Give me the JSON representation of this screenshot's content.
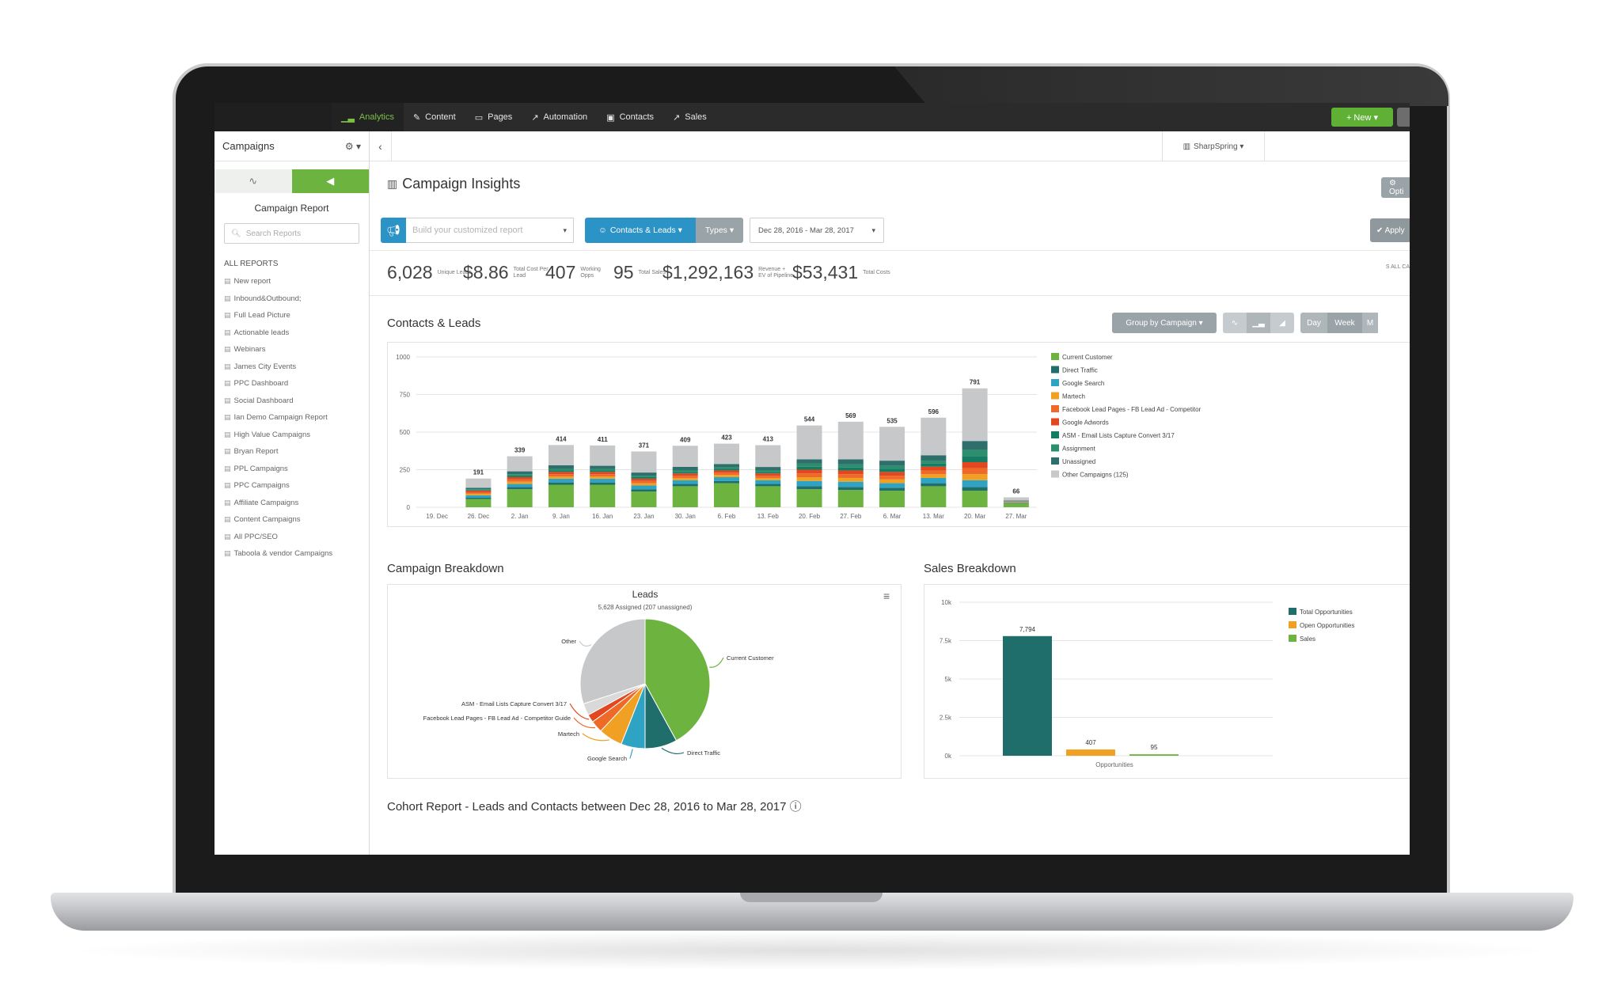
{
  "nav": {
    "items": [
      {
        "label": "Analytics",
        "icon": "analytics-icon",
        "glyph": "▁▃",
        "active": true
      },
      {
        "label": "Content",
        "icon": "pencil-icon",
        "glyph": "✎",
        "active": false
      },
      {
        "label": "Pages",
        "icon": "page-icon",
        "glyph": "▭",
        "active": false
      },
      {
        "label": "Automation",
        "icon": "automation-icon",
        "glyph": "↗",
        "active": false
      },
      {
        "label": "Contacts",
        "icon": "contacts-icon",
        "glyph": "▣",
        "active": false
      },
      {
        "label": "Sales",
        "icon": "sales-icon",
        "glyph": "↗",
        "active": false
      }
    ],
    "new_label": "+ New ▾"
  },
  "sidebar": {
    "title": "Campaigns",
    "gear": "⚙ ▾",
    "tab_left_glyph": "∿",
    "tab_right_glyph": "◀",
    "report_title": "Campaign Report",
    "search_placeholder": "Search Reports",
    "section_label": "ALL REPORTS",
    "reports": [
      "New report",
      "Inbound&Outbound;",
      "Full Lead Picture",
      "Actionable leads",
      "Webinars",
      "James City Events",
      "PPC Dashboard",
      "Social Dashboard",
      "Ian Demo Campaign Report",
      "High Value Campaigns",
      "Bryan Report",
      "PPL Campaigns",
      "PPC Campaigns",
      "Affiliate Campaigns",
      "Content Campaigns",
      "All PPC/SEO",
      "Taboola & vendor Campaigns"
    ]
  },
  "header": {
    "back_glyph": "‹",
    "account": "SharpSpring ▾",
    "page_title": "Campaign Insights",
    "options_label": "⚙ Opti"
  },
  "filters": {
    "build_placeholder": "Build your customized report",
    "contacts_label": "Contacts & Leads ▾",
    "types_label": "Types ▾",
    "date_range": "Dec 28, 2016 - Mar 28, 2017",
    "apply_label": "✔ Apply"
  },
  "kpis": [
    {
      "value": "6,028",
      "label": "Unique Leads"
    },
    {
      "value": "$8.86",
      "label": "Total Cost Per Lead"
    },
    {
      "value": "407",
      "label": "Working Opps"
    },
    {
      "value": "95",
      "label": "Total Sales"
    },
    {
      "value": "$1,292,163",
      "label": "Revenue + EV of Pipeline"
    },
    {
      "value": "$53,431",
      "label": "Total Costs"
    }
  ],
  "kpi_side": "S ALL CA",
  "contacts_section": {
    "title": "Contacts & Leads",
    "group_by": "Group by Campaign ▾",
    "day": "Day",
    "week": "Week",
    "month": "M"
  },
  "colors": {
    "current_customer": "#6cb33f",
    "direct_traffic": "#1f6e6c",
    "google_search": "#2fa3c3",
    "martech": "#f0a022",
    "facebook": "#ee6a28",
    "google_adwords": "#e2471f",
    "asm": "#157b63",
    "assignment": "#2b8f6d",
    "unassigned": "#2e6f6b",
    "other": "#c6c8ca"
  },
  "chart_data": [
    {
      "type": "bar",
      "stacked": true,
      "title": "Contacts & Leads",
      "categories": [
        "19. Dec",
        "26. Dec",
        "2. Jan",
        "9. Jan",
        "16. Jan",
        "23. Jan",
        "30. Jan",
        "6. Feb",
        "13. Feb",
        "20. Feb",
        "27. Feb",
        "6. Mar",
        "13. Mar",
        "20. Mar",
        "27. Mar"
      ],
      "totals": [
        0,
        191,
        339,
        414,
        411,
        371,
        409,
        423,
        413,
        544,
        569,
        535,
        596,
        791,
        66
      ],
      "total_labels": [
        "",
        "191",
        "339",
        "414",
        "411",
        "371",
        "409",
        "423",
        "413",
        "544",
        "569",
        "535",
        "596",
        "791",
        "66"
      ],
      "series": [
        {
          "name": "Current Customer",
          "color": "#6cb33f",
          "values": [
            0,
            55,
            120,
            150,
            150,
            105,
            140,
            160,
            140,
            120,
            115,
            110,
            140,
            110,
            25
          ]
        },
        {
          "name": "Direct Traffic",
          "color": "#1f6e6c",
          "values": [
            0,
            10,
            15,
            15,
            15,
            15,
            15,
            15,
            15,
            20,
            20,
            20,
            20,
            25,
            3
          ]
        },
        {
          "name": "Google Search",
          "color": "#2fa3c3",
          "values": [
            0,
            15,
            20,
            25,
            25,
            25,
            25,
            25,
            25,
            35,
            35,
            30,
            35,
            45,
            4
          ]
        },
        {
          "name": "Martech",
          "color": "#f0a022",
          "values": [
            0,
            10,
            15,
            15,
            15,
            15,
            15,
            15,
            15,
            25,
            25,
            25,
            25,
            40,
            3
          ]
        },
        {
          "name": "Facebook Lead Pages - FB Lead Ad - Competitor",
          "color": "#ee6a28",
          "values": [
            0,
            10,
            15,
            15,
            15,
            15,
            15,
            15,
            15,
            25,
            25,
            25,
            25,
            40,
            2
          ]
        },
        {
          "name": "Google Adwords",
          "color": "#e2471f",
          "values": [
            0,
            10,
            15,
            15,
            15,
            15,
            15,
            15,
            15,
            25,
            25,
            25,
            25,
            40,
            2
          ]
        },
        {
          "name": "ASM - Email Lists Capture Convert 3/17",
          "color": "#157b63",
          "values": [
            0,
            5,
            10,
            10,
            10,
            10,
            10,
            10,
            10,
            20,
            20,
            20,
            20,
            40,
            2
          ]
        },
        {
          "name": "Assignment",
          "color": "#2b8f6d",
          "values": [
            0,
            5,
            10,
            10,
            10,
            10,
            10,
            10,
            10,
            20,
            20,
            20,
            20,
            40,
            2
          ]
        },
        {
          "name": "Unassigned",
          "color": "#2e6f6b",
          "values": [
            0,
            10,
            19,
            24,
            21,
            21,
            24,
            23,
            23,
            29,
            34,
            35,
            36,
            61,
            3
          ]
        },
        {
          "name": "Other Campaigns (125)",
          "color": "#c6c8ca",
          "values": [
            0,
            61,
            100,
            135,
            135,
            140,
            140,
            135,
            145,
            225,
            250,
            225,
            250,
            350,
            20
          ]
        }
      ],
      "ylim": [
        0,
        1000
      ],
      "yticks": [
        "0",
        "250",
        "500",
        "750",
        "1000"
      ],
      "legend": "right"
    },
    {
      "type": "pie",
      "title": "Leads",
      "subtitle": "5,628 Assigned (207 unassigned)",
      "slices": [
        {
          "label": "Current Customer",
          "value": 42,
          "color": "#6cb33f"
        },
        {
          "label": "Direct Traffic",
          "value": 8,
          "color": "#1f6e6c"
        },
        {
          "label": "Google Search",
          "value": 6,
          "color": "#2fa3c3"
        },
        {
          "label": "Martech",
          "value": 6,
          "color": "#f0a022"
        },
        {
          "label": "Facebook Lead Pages - FB Lead Ad - Competitor Guide",
          "value": 3,
          "color": "#ee6a28"
        },
        {
          "label": "ASM - Email Lists Capture Convert 3/17",
          "value": 2,
          "color": "#e2471f"
        },
        {
          "label": "",
          "value": 3,
          "color": "#d9d9d9"
        },
        {
          "label": "Other",
          "value": 30,
          "color": "#c6c8ca"
        }
      ]
    },
    {
      "type": "bar",
      "title": "Sales Breakdown",
      "categories": [
        "Opportunities"
      ],
      "series": [
        {
          "name": "Total Opportunities",
          "color": "#1f6e6c",
          "values": [
            7794
          ]
        },
        {
          "name": "Open Opportunities",
          "color": "#f0a022",
          "values": [
            407
          ]
        },
        {
          "name": "Sales",
          "color": "#6cb33f",
          "values": [
            95
          ]
        }
      ],
      "data_labels": [
        "7,794",
        "407",
        "95"
      ],
      "ylim": [
        0,
        10000
      ],
      "yticks": [
        "0k",
        "2.5k",
        "5k",
        "7.5k",
        "10k"
      ],
      "legend": "right"
    }
  ],
  "breakdown": {
    "campaign_title": "Campaign Breakdown",
    "sales_title": "Sales Breakdown",
    "menu_glyph": "≡"
  },
  "cohort_title": "Cohort Report - Leads and Contacts between Dec 28, 2016 to Mar 28, 2017 ⓘ"
}
